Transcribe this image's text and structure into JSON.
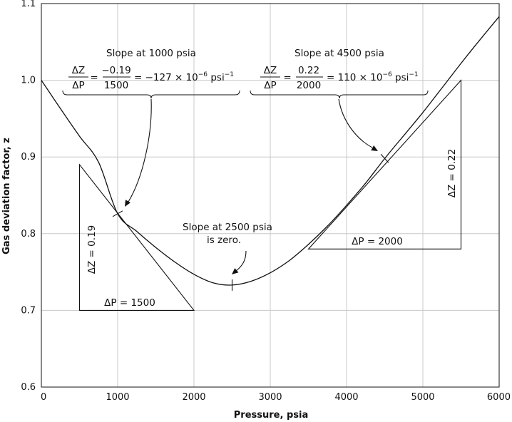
{
  "chart_data": {
    "type": "line",
    "title": "",
    "xlabel": "Pressure, psia",
    "ylabel": "Gas deviation factor, z",
    "xlim": [
      0,
      6000
    ],
    "ylim": [
      0.6,
      1.1
    ],
    "grid": true,
    "x_ticks": [
      "0",
      "1000",
      "2000",
      "3000",
      "4000",
      "5000",
      "6000"
    ],
    "y_ticks": [
      "0.6",
      "0.7",
      "0.8",
      "0.9",
      "1.0",
      "1.1"
    ],
    "series": [
      {
        "x": [
          0,
          250,
          500,
          750,
          1000,
          1250,
          1500,
          1750,
          2000,
          2250,
          2500,
          2750,
          3000,
          3250,
          3500,
          3750,
          4000,
          4250,
          4500,
          4750,
          5000,
          5250,
          5500,
          5750,
          6000
        ],
        "y": [
          1.0,
          0.963,
          0.927,
          0.893,
          0.826,
          0.803,
          0.782,
          0.763,
          0.747,
          0.736,
          0.733,
          0.738,
          0.749,
          0.765,
          0.786,
          0.81,
          0.837,
          0.866,
          0.898,
          0.928,
          0.958,
          0.99,
          1.022,
          1.053,
          1.083
        ]
      }
    ],
    "annotations": {
      "slope_1000": {
        "title": "Slope at 1000 psia",
        "lhs_num": "ΔZ",
        "lhs_den": "ΔP",
        "num": "−0.19",
        "den": "1500",
        "result": "= −127 × 10",
        "exp": "−6",
        "unit": " psi",
        "unit_exp": "−1",
        "eq": "="
      },
      "slope_4500": {
        "title": "Slope at 4500 psia",
        "lhs_num": "ΔZ",
        "lhs_den": "ΔP",
        "num": "0.22",
        "den": "2000",
        "result": "= 110 × 10",
        "exp": "−6",
        "unit": " psi",
        "unit_exp": "−1",
        "eq": "="
      },
      "slope_2500_line1": "Slope at 2500 psia",
      "slope_2500_line2": "is zero.",
      "dz_1000": "ΔZ = 0.19",
      "dp_1000": "ΔP = 1500",
      "dz_4500": "ΔZ = 0.22",
      "dp_4500": "ΔP = 2000"
    }
  }
}
